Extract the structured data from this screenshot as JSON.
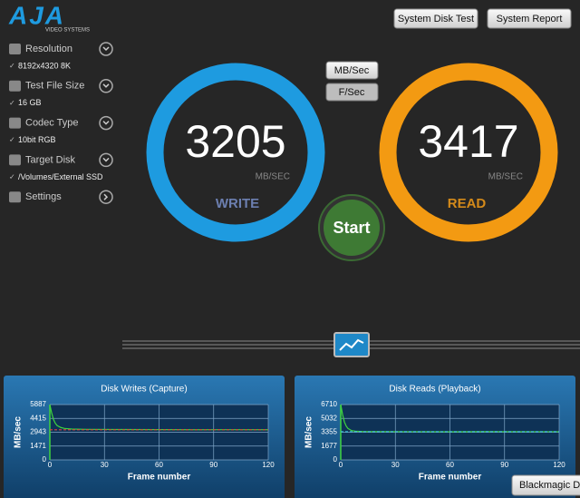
{
  "header": {
    "logo": "AJA",
    "logo_sub": "VIDEO SYSTEMS",
    "buttons": [
      "System Disk Test",
      "System Report"
    ]
  },
  "sidebar": {
    "items": [
      {
        "label": "Resolution",
        "value": "8192x4320 8K"
      },
      {
        "label": "Test File Size",
        "value": "16 GB"
      },
      {
        "label": "Codec Type",
        "value": "10bit RGB"
      },
      {
        "label": "Target Disk",
        "value": "/Volumes/External SSD"
      },
      {
        "label": "Settings"
      }
    ]
  },
  "units_toggle": [
    "MB/Sec",
    "F/Sec"
  ],
  "write": {
    "value": 3205,
    "unit": "MB/SEC",
    "label": "WRITE",
    "color": "#1e9be0"
  },
  "read": {
    "value": 3417,
    "unit": "MB/SEC",
    "label": "READ",
    "color": "#f39a12"
  },
  "start": "Start",
  "footer_button": "Blackmagic Dis",
  "chart_data": [
    {
      "type": "line",
      "title": "Disk Writes (Capture)",
      "y_label": "MB/sec",
      "x_label": "Frame number",
      "x": [
        0,
        1,
        2,
        3,
        4,
        6,
        8,
        12,
        20,
        40,
        60,
        80,
        100,
        120
      ],
      "series": [
        {
          "color": "#3fd43f",
          "values": [
            5887,
            5000,
            4300,
            3900,
            3650,
            3450,
            3350,
            3280,
            3250,
            3230,
            3220,
            3210,
            3215,
            3210
          ]
        },
        {
          "color": "#e04040",
          "dashed": true,
          "values": [
            3205,
            3205,
            3205,
            3205,
            3205,
            3205,
            3205,
            3205,
            3205,
            3205,
            3205,
            3205,
            3205,
            3205
          ]
        }
      ],
      "xlim": [
        0,
        120
      ],
      "ylim": [
        0,
        5887
      ],
      "xticks": [
        0,
        30,
        60,
        90,
        120
      ],
      "yticks": [
        0,
        1471,
        2943,
        4415,
        5887
      ],
      "grid": true
    },
    {
      "type": "line",
      "title": "Disk Reads (Playback)",
      "y_label": "MB/sec",
      "x_label": "Frame number",
      "x": [
        0,
        1,
        2,
        3,
        4,
        6,
        8,
        12,
        20,
        40,
        60,
        80,
        100,
        120
      ],
      "series": [
        {
          "color": "#3fd43f",
          "values": [
            6710,
            5500,
            4600,
            4100,
            3800,
            3550,
            3480,
            3440,
            3420,
            3417,
            3410,
            3420,
            3415,
            3417
          ]
        },
        {
          "color": "#3fc8e0",
          "dashed": true,
          "values": [
            3417,
            3417,
            3417,
            3417,
            3417,
            3417,
            3417,
            3417,
            3417,
            3417,
            3417,
            3417,
            3417,
            3417
          ]
        }
      ],
      "xlim": [
        0,
        120
      ],
      "ylim": [
        0,
        6710
      ],
      "xticks": [
        0,
        30,
        60,
        90,
        120
      ],
      "yticks": [
        0,
        1677,
        3355,
        5032,
        6710
      ],
      "grid": true
    }
  ]
}
